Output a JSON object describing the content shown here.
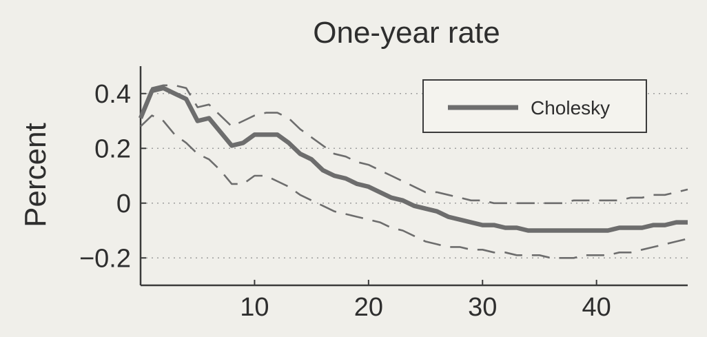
{
  "chart_data": {
    "type": "line",
    "title": "One-year rate",
    "xlabel": "",
    "ylabel": "Percent",
    "xlim": [
      0,
      48
    ],
    "ylim": [
      -0.3,
      0.5
    ],
    "xticks": [
      10,
      20,
      30,
      40
    ],
    "xtick_labels": [
      "10",
      "20",
      "30",
      "40"
    ],
    "yticks": [
      0.4,
      0.2,
      0,
      -0.2
    ],
    "ytick_labels": [
      "0.4",
      "0.2",
      "0",
      "−0.2"
    ],
    "grid": "horizontal dotted",
    "legend_position": "top-right",
    "x": [
      0,
      1,
      2,
      3,
      4,
      5,
      6,
      7,
      8,
      9,
      10,
      11,
      12,
      13,
      14,
      15,
      16,
      17,
      18,
      19,
      20,
      21,
      22,
      23,
      24,
      25,
      26,
      27,
      28,
      29,
      30,
      31,
      32,
      33,
      34,
      35,
      36,
      37,
      38,
      39,
      40,
      41,
      42,
      43,
      44,
      45,
      46,
      47,
      48
    ],
    "series": [
      {
        "name": "Cholesky",
        "style": "solid",
        "color": "#6d6d6d",
        "values": [
          0.31,
          0.41,
          0.42,
          0.4,
          0.38,
          0.3,
          0.31,
          0.26,
          0.21,
          0.22,
          0.25,
          0.25,
          0.25,
          0.22,
          0.18,
          0.16,
          0.12,
          0.1,
          0.09,
          0.07,
          0.06,
          0.04,
          0.02,
          0.01,
          -0.01,
          -0.02,
          -0.03,
          -0.05,
          -0.06,
          -0.07,
          -0.08,
          -0.08,
          -0.09,
          -0.09,
          -0.1,
          -0.1,
          -0.1,
          -0.1,
          -0.1,
          -0.1,
          -0.1,
          -0.1,
          -0.09,
          -0.09,
          -0.09,
          -0.08,
          -0.08,
          -0.07,
          -0.07
        ]
      },
      {
        "style": "dashed",
        "color": "#6d6d6d",
        "values": [
          0.32,
          0.42,
          0.43,
          0.43,
          0.42,
          0.35,
          0.36,
          0.32,
          0.28,
          0.3,
          0.32,
          0.33,
          0.33,
          0.31,
          0.27,
          0.24,
          0.21,
          0.18,
          0.17,
          0.15,
          0.14,
          0.12,
          0.1,
          0.08,
          0.06,
          0.04,
          0.04,
          0.03,
          0.02,
          0.01,
          0.01,
          0.0,
          0.0,
          0.0,
          0.0,
          0.0,
          0.0,
          0.0,
          0.01,
          0.01,
          0.01,
          0.01,
          0.01,
          0.02,
          0.02,
          0.03,
          0.03,
          0.04,
          0.05
        ]
      },
      {
        "style": "dashed",
        "color": "#6d6d6d",
        "values": [
          0.28,
          0.32,
          0.3,
          0.25,
          0.22,
          0.18,
          0.16,
          0.12,
          0.07,
          0.07,
          0.1,
          0.1,
          0.08,
          0.06,
          0.03,
          0.01,
          -0.01,
          -0.03,
          -0.04,
          -0.05,
          -0.06,
          -0.07,
          -0.09,
          -0.1,
          -0.12,
          -0.14,
          -0.15,
          -0.16,
          -0.16,
          -0.17,
          -0.17,
          -0.18,
          -0.18,
          -0.19,
          -0.19,
          -0.19,
          -0.2,
          -0.2,
          -0.2,
          -0.19,
          -0.19,
          -0.19,
          -0.18,
          -0.18,
          -0.17,
          -0.16,
          -0.15,
          -0.14,
          -0.13
        ]
      }
    ]
  }
}
